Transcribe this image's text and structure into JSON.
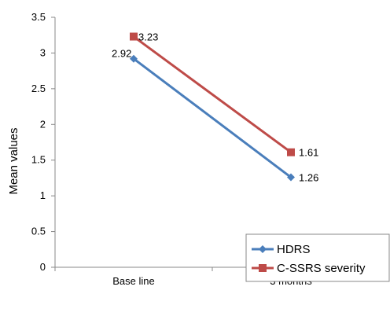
{
  "chart_data": {
    "type": "line",
    "categories": [
      "Base line",
      "3 months"
    ],
    "series": [
      {
        "name": "HDRS",
        "values": [
          2.92,
          1.26
        ],
        "color": "#4a7ebb",
        "marker": "diamond"
      },
      {
        "name": "C-SSRS severity",
        "values": [
          3.23,
          1.61
        ],
        "color": "#be4b48",
        "marker": "square"
      }
    ],
    "title": "",
    "xlabel": "",
    "ylabel": "Mean values",
    "ylim": [
      0,
      3.5
    ],
    "yticks": [
      "0",
      "0.5",
      "1",
      "1.5",
      "2",
      "2.5",
      "3",
      "3.5"
    ],
    "data_labels": [
      [
        "2.92",
        "1.26"
      ],
      [
        "3.23",
        "1.61"
      ]
    ],
    "grid": false,
    "legend_position": "bottom-right"
  }
}
